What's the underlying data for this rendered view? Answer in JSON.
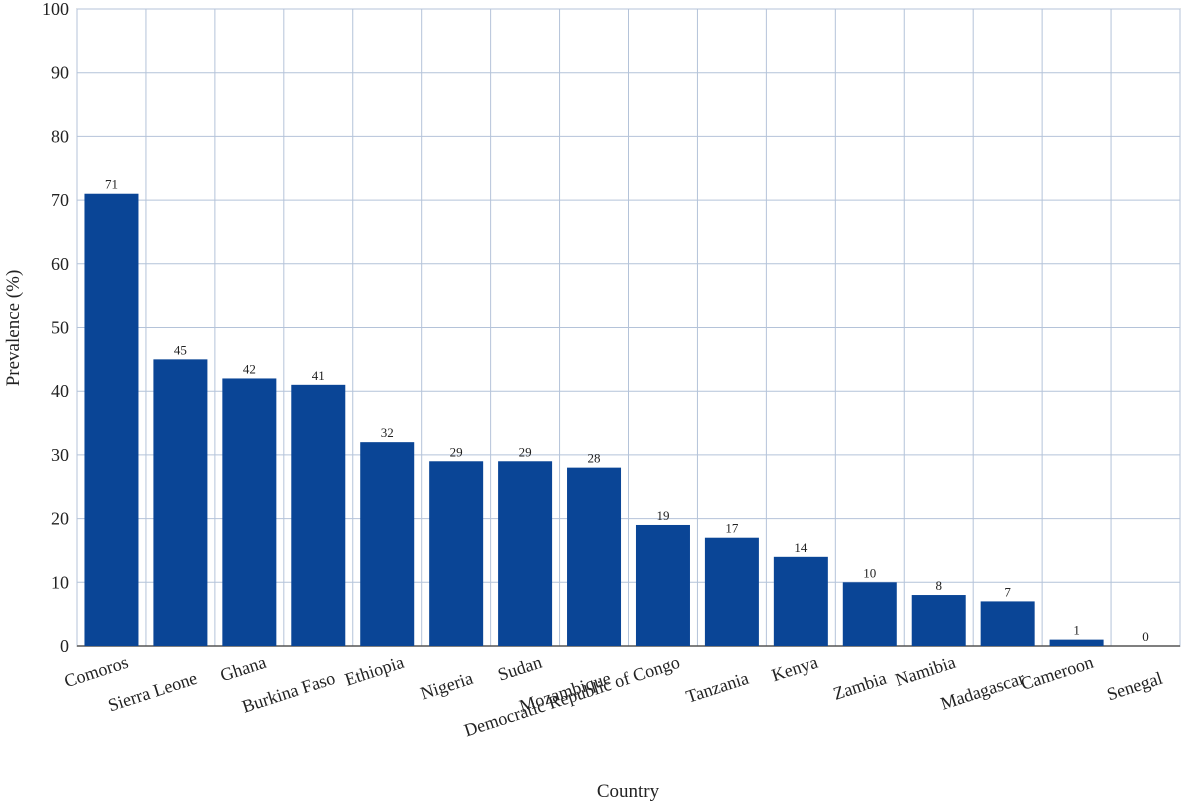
{
  "chart_data": {
    "type": "bar",
    "title": "",
    "xlabel": "Country",
    "ylabel": "Prevalence (%)",
    "ylim": [
      0,
      100
    ],
    "yticks": [
      0,
      10,
      20,
      30,
      40,
      50,
      60,
      70,
      80,
      90,
      100
    ],
    "grid": true,
    "categories": [
      "Comoros",
      "Sierra Leone",
      "Ghana",
      "Burkina Faso",
      "Ethiopia",
      "Nigeria",
      "Sudan",
      "Mozambique",
      "Democratic Republic of Congo",
      "Tanzania",
      "Kenya",
      "Zambia",
      "Namibia",
      "Madagascar",
      "Cameroon",
      "Senegal"
    ],
    "values": [
      71,
      45,
      42,
      41,
      32,
      29,
      29,
      28,
      19,
      17,
      14,
      10,
      8,
      7,
      1,
      0
    ],
    "bar_color": "#0a4596",
    "grid_color": "#b4c3d9"
  }
}
